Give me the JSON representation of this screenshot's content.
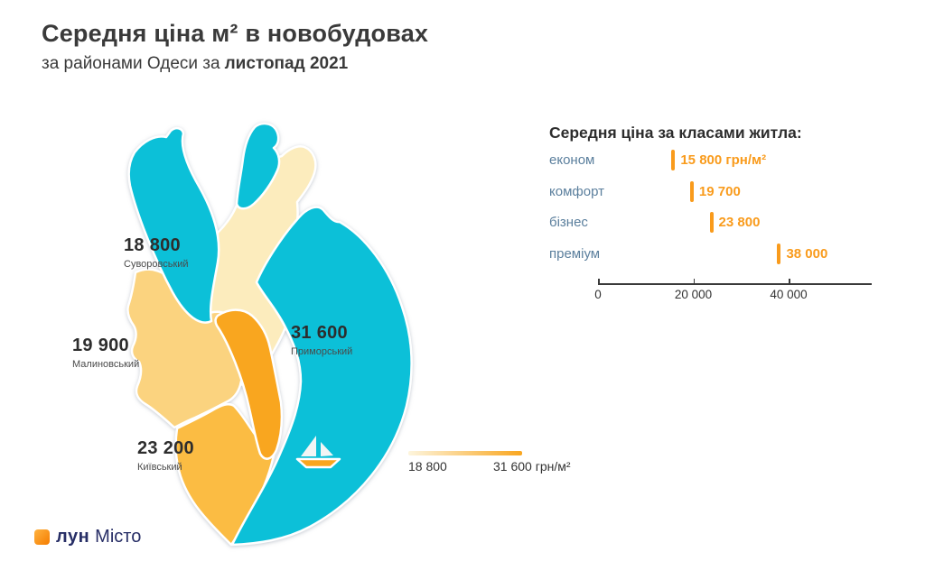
{
  "header": {
    "title": "Середня ціна м² в новобудовах",
    "subtitle_prefix": "за районами Одеси за",
    "subtitle_bold": "листопад 2021"
  },
  "map": {
    "water_color": "#0cc0d8",
    "regions": [
      {
        "id": "suvorovskyi",
        "name": "Суворовський",
        "price_label": "18 800",
        "price": 18800,
        "color": "#fcecbd"
      },
      {
        "id": "malynovskyi",
        "name": "Малиновський",
        "price_label": "19 900",
        "price": 19900,
        "color": "#fbd37f"
      },
      {
        "id": "kyivskyi",
        "name": "Київський",
        "price_label": "23 200",
        "price": 23200,
        "color": "#fbbc43"
      },
      {
        "id": "prymorskyi",
        "name": "Приморський",
        "price_label": "31 600",
        "price": 31600,
        "color": "#f9a61f"
      }
    ],
    "gradient_legend": {
      "min_label": "18 800",
      "max_label": "31 600 грн/м²",
      "from_color": "#fdf5dd",
      "to_color": "#f9a61f"
    },
    "boat": {
      "sail_color": "#f2f5f5",
      "hull_color": "#f9a61f"
    }
  },
  "class_chart": {
    "title": "Середня ціна за класами житла:",
    "accent_color": "#f99b1c",
    "label_color": "#5b7f9d",
    "rows": [
      {
        "label": "економ",
        "value": 15800,
        "value_label": "15 800 грн/м²"
      },
      {
        "label": "комфорт",
        "value": 19700,
        "value_label": "19 700"
      },
      {
        "label": "бізнес",
        "value": 23800,
        "value_label": "23 800"
      },
      {
        "label": "преміум",
        "value": 38000,
        "value_label": "38 000"
      }
    ],
    "axis": {
      "ticks": [
        {
          "value": 0,
          "label": "0"
        },
        {
          "value": 20000,
          "label": "20 000"
        },
        {
          "value": 40000,
          "label": "40 000"
        }
      ],
      "max": 57400
    }
  },
  "footer": {
    "logo_bold": "лун",
    "logo_regular": "Місто",
    "logo_color_from": "#ffb340",
    "logo_color_to": "#f57c00",
    "logo_text_color": "#272e66"
  },
  "chart_data": [
    {
      "type": "heatmap",
      "subtype": "choropleth-map",
      "title": "Середня ціна м² в новобудовах за районами Одеси за листопад 2021",
      "categories": [
        "Суворовський",
        "Малиновський",
        "Київський",
        "Приморський"
      ],
      "values": [
        18800,
        19900,
        23200,
        31600
      ],
      "unit": "грн/м²",
      "color_scale": {
        "min": 18800,
        "max": 31600,
        "min_color": "#fcecbd",
        "max_color": "#f9a61f"
      }
    },
    {
      "type": "bar",
      "orientation": "horizontal",
      "title": "Середня ціна за класами житла:",
      "categories": [
        "економ",
        "комфорт",
        "бізнес",
        "преміум"
      ],
      "values": [
        15800,
        19700,
        23800,
        38000
      ],
      "unit": "грн/м²",
      "xlabel": "",
      "ylabel": "",
      "xlim": [
        0,
        57400
      ],
      "xticks": [
        0,
        20000,
        40000
      ],
      "grid": false,
      "legend": false
    }
  ]
}
